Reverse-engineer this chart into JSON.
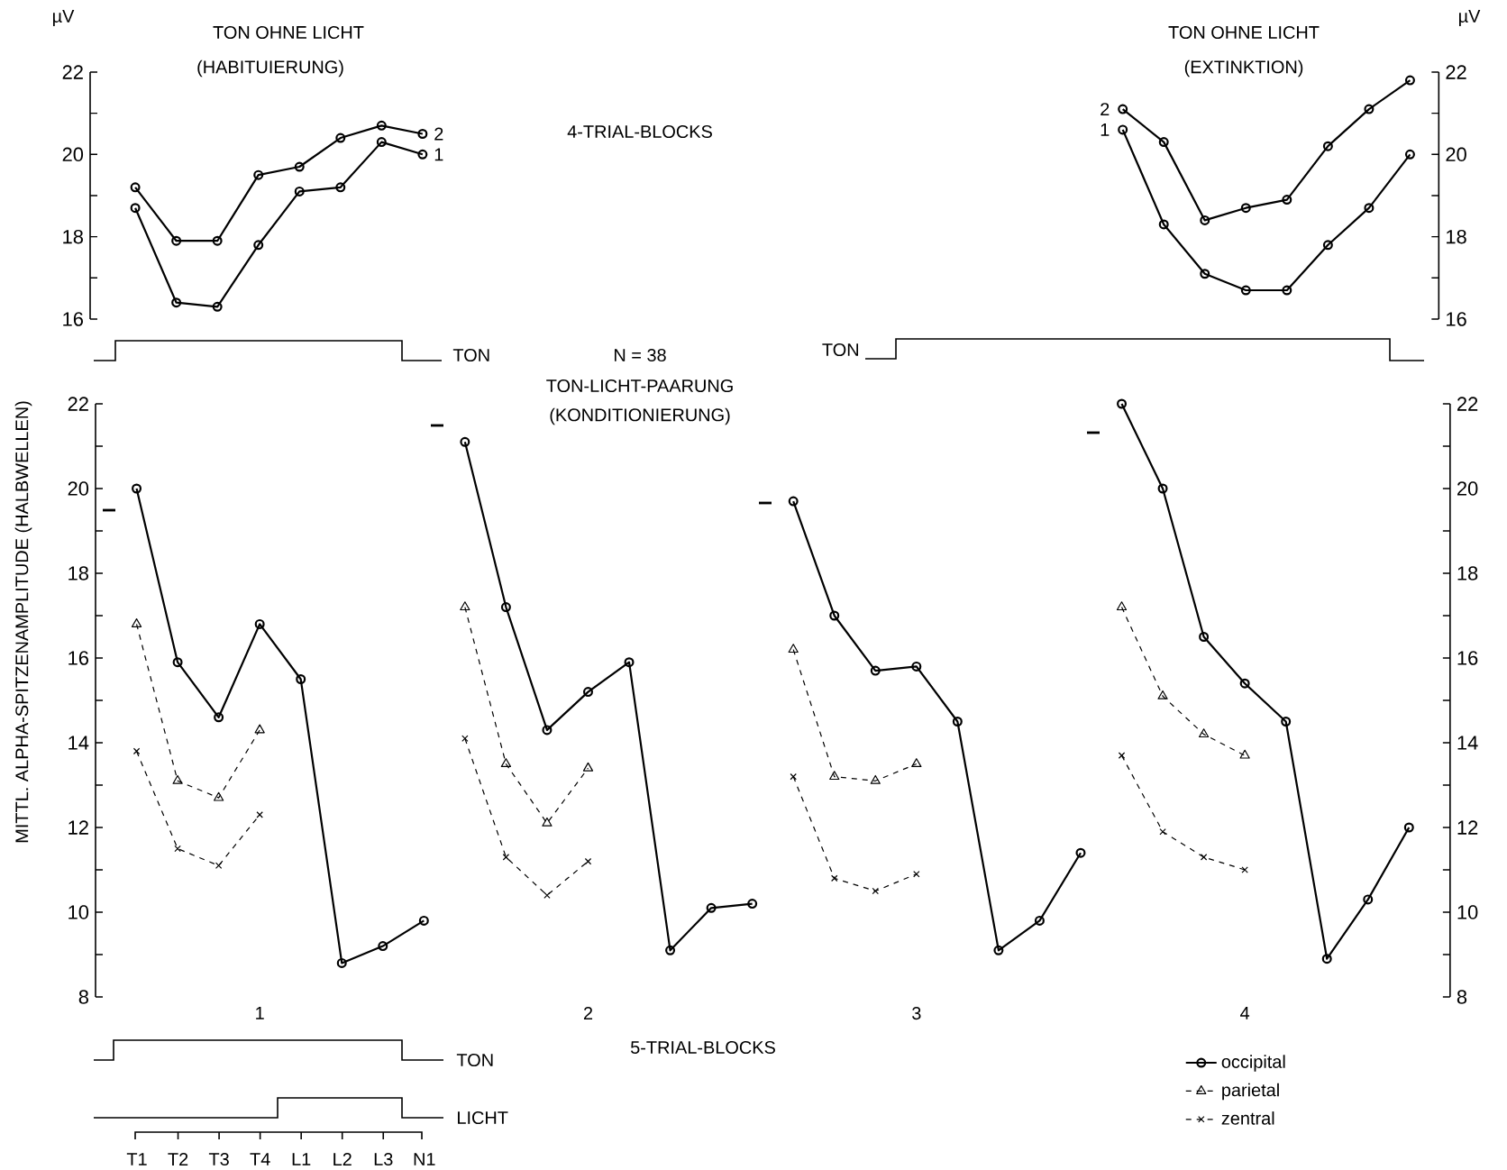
{
  "chart_data": [
    {
      "type": "line",
      "title": "TON OHNE LICHT",
      "subtitle": "(HABITUIERUNG)",
      "ylabel": "µV",
      "categories": [
        null,
        null,
        null,
        null,
        null,
        null,
        null,
        null
      ],
      "ylim": [
        16,
        22
      ],
      "yticks": [
        16,
        {
          "value": 17,
          "label": null
        },
        18,
        {
          "value": 19,
          "label": null
        },
        20,
        {
          "value": 21,
          "label": null
        },
        22
      ],
      "marker": "circle",
      "line_style": "solid",
      "annotations": [
        "TON"
      ],
      "series": [
        {
          "name": "2",
          "color": "#000000",
          "values": [
            19.2,
            17.9,
            17.9,
            19.5,
            19.7,
            20.4,
            20.7,
            20.5
          ]
        },
        {
          "name": "1",
          "color": "#000000",
          "values": [
            18.7,
            16.4,
            16.3,
            17.8,
            19.1,
            19.2,
            20.3,
            20.0
          ]
        }
      ]
    },
    {
      "type": "line",
      "title": "TON OHNE LICHT",
      "subtitle": "(EXTINKTION)",
      "ylabel": "µV",
      "categories": [
        null,
        null,
        null,
        null,
        null,
        null,
        null,
        null
      ],
      "ylim": [
        16,
        22
      ],
      "yticks": [
        16,
        {
          "value": 17,
          "label": null
        },
        18,
        {
          "value": 19,
          "label": null
        },
        20,
        {
          "value": 21,
          "label": null
        },
        22
      ],
      "marker": "circle",
      "line_style": "solid",
      "annotations": [
        "TON"
      ],
      "series": [
        {
          "name": "2",
          "color": "#000000",
          "values": [
            21.1,
            20.3,
            18.4,
            18.7,
            18.9,
            20.2,
            21.1,
            21.8
          ]
        },
        {
          "name": "1",
          "color": "#000000",
          "values": [
            20.6,
            18.3,
            17.1,
            16.7,
            16.7,
            17.8,
            18.7,
            20.0
          ]
        }
      ]
    },
    {
      "type": "line",
      "title": "TON-LICHT-PAARUNG",
      "subtitle": "(KONDITIONIERUNG)",
      "xlabel": "5-TRIAL-BLOCKS",
      "ylabel": "MITTL. ALPHA-SPITZENAMPLITUDE (HALBWELLEN)",
      "categories": [
        null,
        null,
        null,
        "1",
        null,
        null,
        null,
        null,
        null,
        null,
        null,
        "2",
        null,
        null,
        null,
        null,
        null,
        null,
        null,
        "3",
        null,
        null,
        null,
        null,
        null,
        null,
        null,
        "4",
        null,
        null,
        null,
        null
      ],
      "ylim": [
        8,
        22
      ],
      "yticks": [
        8,
        {
          "value": 9,
          "label": null
        },
        10,
        {
          "value": 11,
          "label": null
        },
        12,
        {
          "value": 13,
          "label": null
        },
        14,
        {
          "value": 15,
          "label": null
        },
        16,
        {
          "value": 17,
          "label": null
        },
        18,
        {
          "value": 19,
          "label": null
        },
        20,
        {
          "value": 21,
          "label": null
        },
        22
      ],
      "y2lim": [
        8,
        22
      ],
      "y2ticks": [
        8,
        {
          "value": 9,
          "label": null
        },
        10,
        {
          "value": 11,
          "label": null
        },
        12,
        {
          "value": 13,
          "label": null
        },
        14,
        {
          "value": 15,
          "label": null
        },
        16,
        {
          "value": 17,
          "label": null
        },
        18,
        {
          "value": 19,
          "label": null
        },
        20,
        {
          "value": 21,
          "label": null
        },
        22
      ],
      "legend": "bottom right",
      "annotations": [
        "4-TRIAL-BLOCKS",
        "N = 38",
        "TON",
        "LICHT",
        "T1",
        "T2",
        "T3",
        "T4",
        "L1",
        "L2",
        "L3",
        "N1"
      ],
      "series": [
        {
          "name": "occipital",
          "color": "#000000",
          "marker": "circle",
          "line_style": "solid",
          "values": [
            20.0,
            15.9,
            14.6,
            16.8,
            15.5,
            8.8,
            9.2,
            9.8,
            null,
            null,
            null,
            null,
            null,
            null,
            null,
            null,
            null,
            null,
            null,
            null,
            null,
            null,
            null,
            null,
            null,
            null,
            null,
            null,
            null,
            null,
            null,
            null
          ]
        },
        {
          "color": "#000000",
          "marker": "circle",
          "line_style": "solid",
          "values": [
            null,
            null,
            null,
            null,
            null,
            null,
            null,
            null,
            21.1,
            17.2,
            14.3,
            15.2,
            15.9,
            9.1,
            10.1,
            10.2,
            null,
            null,
            null,
            null,
            null,
            null,
            null,
            null,
            null,
            null,
            null,
            null,
            null,
            null,
            null,
            null
          ]
        },
        {
          "color": "#000000",
          "marker": "circle",
          "line_style": "solid",
          "values": [
            null,
            null,
            null,
            null,
            null,
            null,
            null,
            null,
            null,
            null,
            null,
            null,
            null,
            null,
            null,
            null,
            19.7,
            17.0,
            15.7,
            15.8,
            14.5,
            9.1,
            9.8,
            11.4,
            null,
            null,
            null,
            null,
            null,
            null,
            null,
            null
          ]
        },
        {
          "color": "#000000",
          "marker": "circle",
          "line_style": "solid",
          "values": [
            null,
            null,
            null,
            null,
            null,
            null,
            null,
            null,
            null,
            null,
            null,
            null,
            null,
            null,
            null,
            null,
            null,
            null,
            null,
            null,
            null,
            null,
            null,
            null,
            22.0,
            20.0,
            16.5,
            15.4,
            14.5,
            8.9,
            10.3,
            12.0
          ]
        },
        {
          "name": "parietal",
          "color": "#000000",
          "marker": "triangle",
          "line_style": "dashed",
          "values": [
            16.8,
            13.1,
            12.7,
            14.3,
            null,
            null,
            null,
            null,
            null,
            null,
            null,
            null,
            null,
            null,
            null,
            null,
            null,
            null,
            null,
            null,
            null,
            null,
            null,
            null,
            null,
            null,
            null,
            null,
            null,
            null,
            null,
            null
          ]
        },
        {
          "color": "#000000",
          "marker": "triangle",
          "line_style": "dashed",
          "values": [
            null,
            null,
            null,
            null,
            null,
            null,
            null,
            null,
            17.2,
            13.5,
            12.1,
            13.4,
            null,
            null,
            null,
            null,
            null,
            null,
            null,
            null,
            null,
            null,
            null,
            null,
            null,
            null,
            null,
            null,
            null,
            null,
            null,
            null
          ]
        },
        {
          "color": "#000000",
          "marker": "triangle",
          "line_style": "dashed",
          "values": [
            null,
            null,
            null,
            null,
            null,
            null,
            null,
            null,
            null,
            null,
            null,
            null,
            null,
            null,
            null,
            null,
            16.2,
            13.2,
            13.1,
            13.5,
            null,
            null,
            null,
            null,
            null,
            null,
            null,
            null,
            null,
            null,
            null,
            null
          ]
        },
        {
          "color": "#000000",
          "marker": "triangle",
          "line_style": "dashed",
          "values": [
            null,
            null,
            null,
            null,
            null,
            null,
            null,
            null,
            null,
            null,
            null,
            null,
            null,
            null,
            null,
            null,
            null,
            null,
            null,
            null,
            null,
            null,
            null,
            null,
            17.2,
            15.1,
            14.2,
            13.7,
            null,
            null,
            null,
            null
          ]
        },
        {
          "name": "zentral",
          "color": "#000000",
          "marker": "cross",
          "line_style": "dashed",
          "values": [
            13.8,
            11.5,
            11.1,
            12.3,
            null,
            null,
            null,
            null,
            null,
            null,
            null,
            null,
            null,
            null,
            null,
            null,
            null,
            null,
            null,
            null,
            null,
            null,
            null,
            null,
            null,
            null,
            null,
            null,
            null,
            null,
            null,
            null
          ]
        },
        {
          "color": "#000000",
          "marker": "cross",
          "line_style": "dashed",
          "values": [
            null,
            null,
            null,
            null,
            null,
            null,
            null,
            null,
            14.1,
            11.3,
            10.4,
            11.2,
            null,
            null,
            null,
            null,
            null,
            null,
            null,
            null,
            null,
            null,
            null,
            null,
            null,
            null,
            null,
            null,
            null,
            null,
            null,
            null
          ]
        },
        {
          "color": "#000000",
          "marker": "cross",
          "line_style": "dashed",
          "values": [
            null,
            null,
            null,
            null,
            null,
            null,
            null,
            null,
            null,
            null,
            null,
            null,
            null,
            null,
            null,
            null,
            13.2,
            10.8,
            10.5,
            10.9,
            null,
            null,
            null,
            null,
            null,
            null,
            null,
            null,
            null,
            null,
            null,
            null
          ]
        },
        {
          "color": "#000000",
          "marker": "cross",
          "line_style": "dashed",
          "values": [
            null,
            null,
            null,
            null,
            null,
            null,
            null,
            null,
            null,
            null,
            null,
            null,
            null,
            null,
            null,
            null,
            null,
            null,
            null,
            null,
            null,
            null,
            null,
            null,
            13.7,
            11.9,
            11.3,
            11.0,
            null,
            null,
            null,
            null
          ]
        }
      ]
    }
  ]
}
